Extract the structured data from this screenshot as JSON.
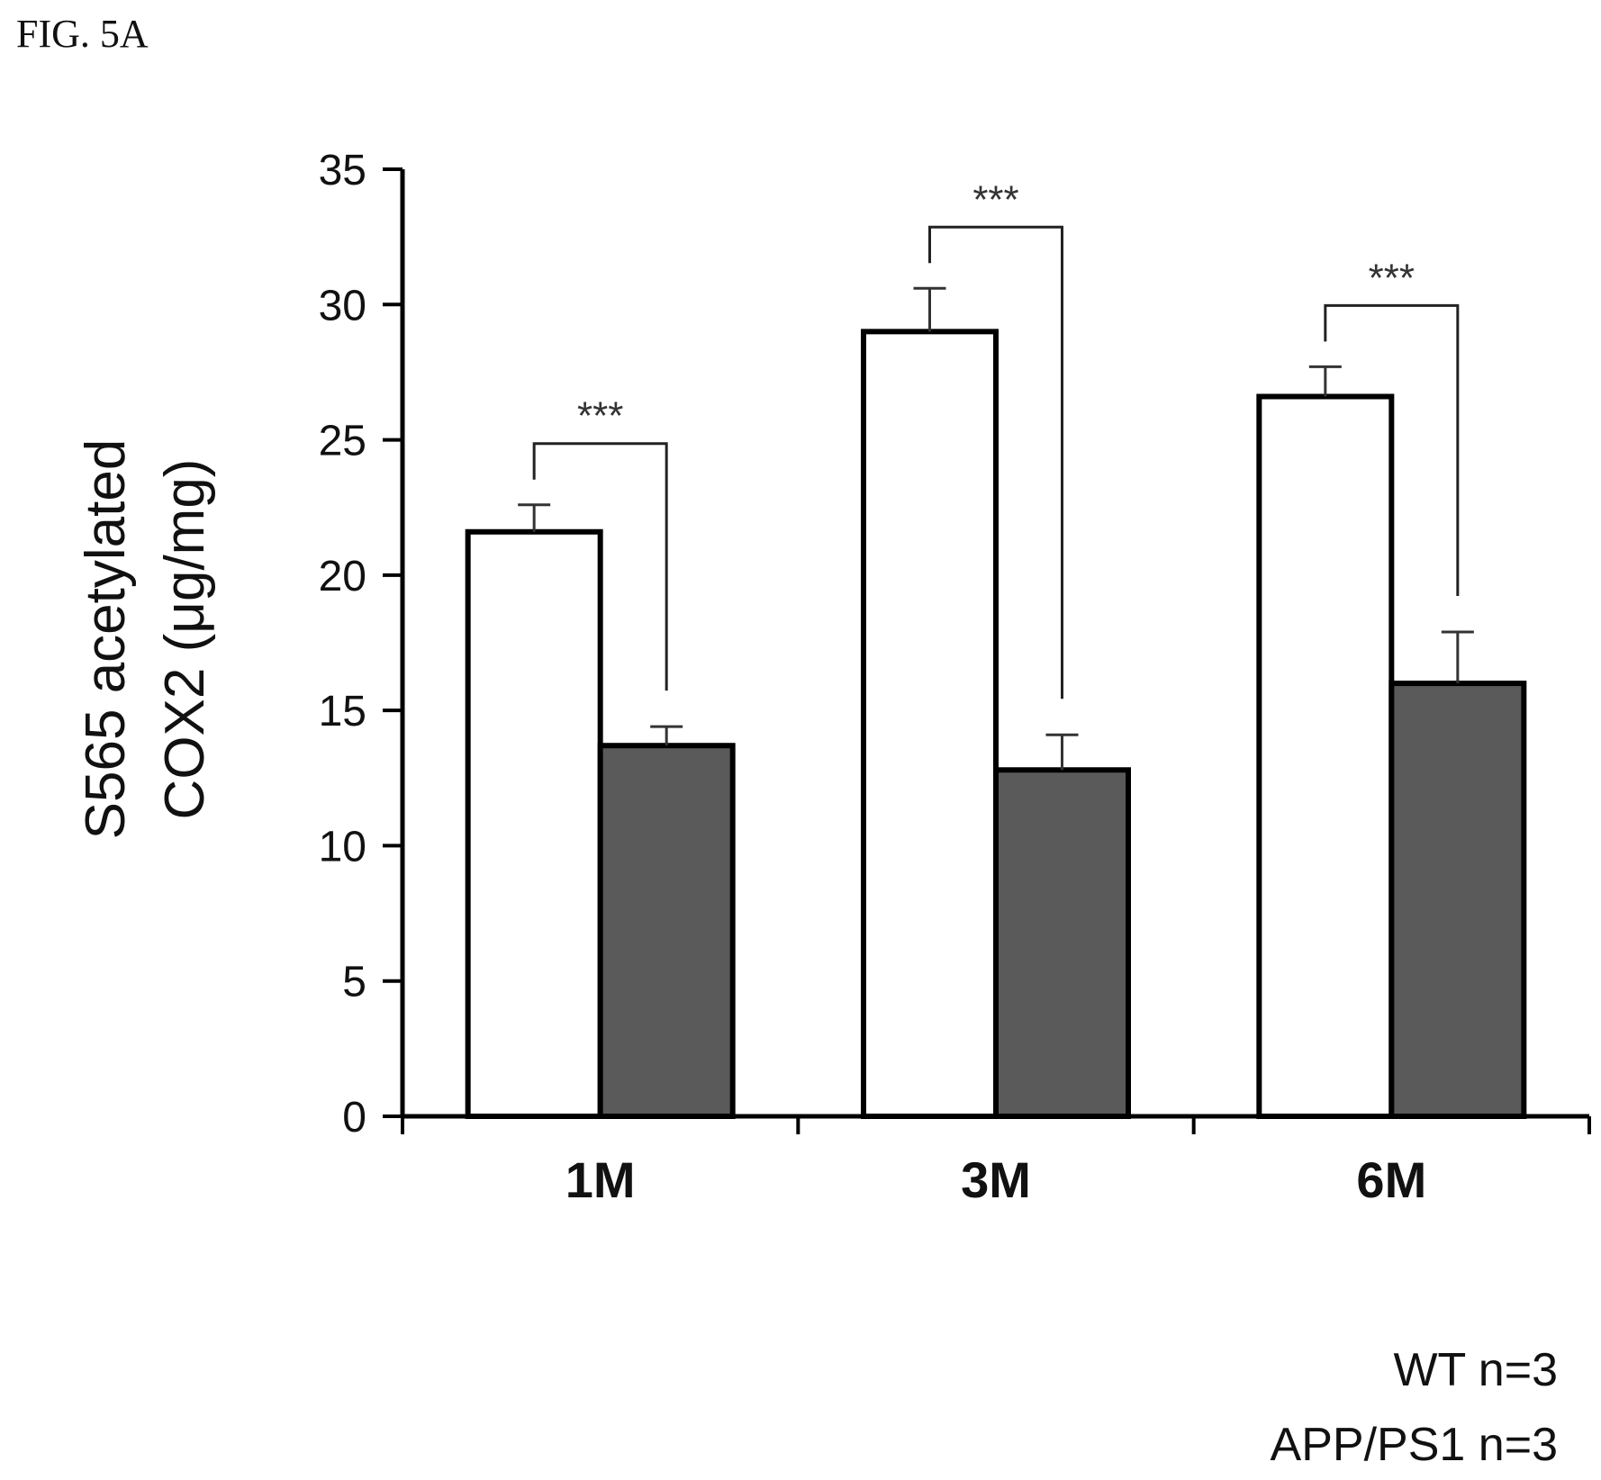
{
  "figure_label": "FIG. 5A",
  "colors": {
    "wt_fill": "#ffffff",
    "app_fill": "#5a5a5a",
    "stroke": "#000000"
  },
  "chart_data": {
    "type": "bar",
    "categories": [
      "1M",
      "3M",
      "6M"
    ],
    "series": [
      {
        "name": "WT n=3",
        "values": [
          21.6,
          29.0,
          26.6
        ],
        "errors": [
          1.0,
          1.6,
          1.1
        ]
      },
      {
        "name": "APP/PS1 n=3",
        "values": [
          13.7,
          12.8,
          16.0
        ],
        "errors": [
          0.7,
          1.3,
          1.9
        ]
      }
    ],
    "ylabel_lines": [
      "S565 acetylated",
      "COX2 (μg/mg)"
    ],
    "xlabel": "",
    "ylim": [
      0,
      35
    ],
    "yticks": [
      0,
      5,
      10,
      15,
      20,
      25,
      30,
      35
    ],
    "significance": [
      "***",
      "***",
      "***"
    ],
    "legend": [
      "WT n=3",
      "APP/PS1 n=3"
    ]
  }
}
